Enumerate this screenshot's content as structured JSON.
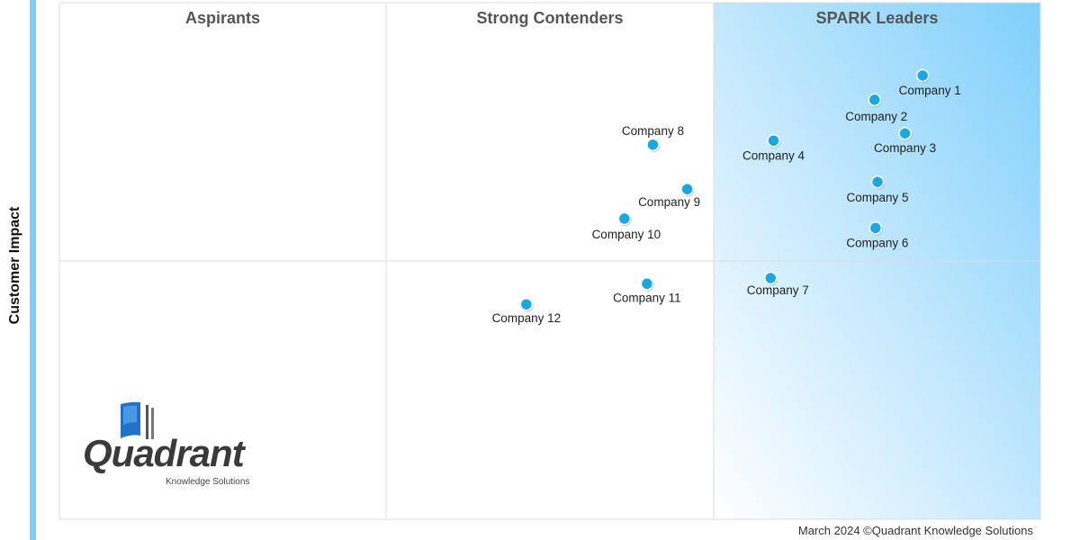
{
  "chart_data": {
    "type": "scatter",
    "ylabel": "Customer Impact",
    "xlabel": "",
    "xlim": [
      0,
      100
    ],
    "ylim": [
      0,
      100
    ],
    "grid": false,
    "quadrant_dividers": {
      "x": [
        33.3,
        66.7
      ],
      "y": [
        50
      ]
    },
    "quadrant_labels": [
      "Aspirants",
      "Strong Contenders",
      "SPARK Leaders"
    ],
    "colors": {
      "point": "#1aa8e0",
      "leaders_fill": "#86d2fb",
      "side_bar": "#80cdf6"
    },
    "points": [
      {
        "label": "Company 1",
        "x": 88.0,
        "y": 85.9
      },
      {
        "label": "Company 2",
        "x": 83.1,
        "y": 81.2
      },
      {
        "label": "Company 3",
        "x": 86.2,
        "y": 74.7
      },
      {
        "label": "Company 4",
        "x": 72.8,
        "y": 73.3
      },
      {
        "label": "Company 5",
        "x": 83.4,
        "y": 65.3
      },
      {
        "label": "Company 6",
        "x": 83.2,
        "y": 56.4
      },
      {
        "label": "Company 7",
        "x": 72.5,
        "y": 46.7
      },
      {
        "label": "Company 8",
        "x": 60.5,
        "y": 72.5
      },
      {
        "label": "Company 9",
        "x": 64.0,
        "y": 63.9
      },
      {
        "label": "Company 10",
        "x": 57.6,
        "y": 58.2
      },
      {
        "label": "Company 11",
        "x": 59.9,
        "y": 45.6
      },
      {
        "label": "Company 12",
        "x": 47.6,
        "y": 41.6
      }
    ]
  },
  "footer": "March 2024 ©Quadrant Knowledge Solutions",
  "logo": {
    "word": "Quadrant",
    "sub": "Knowledge Solutions"
  }
}
